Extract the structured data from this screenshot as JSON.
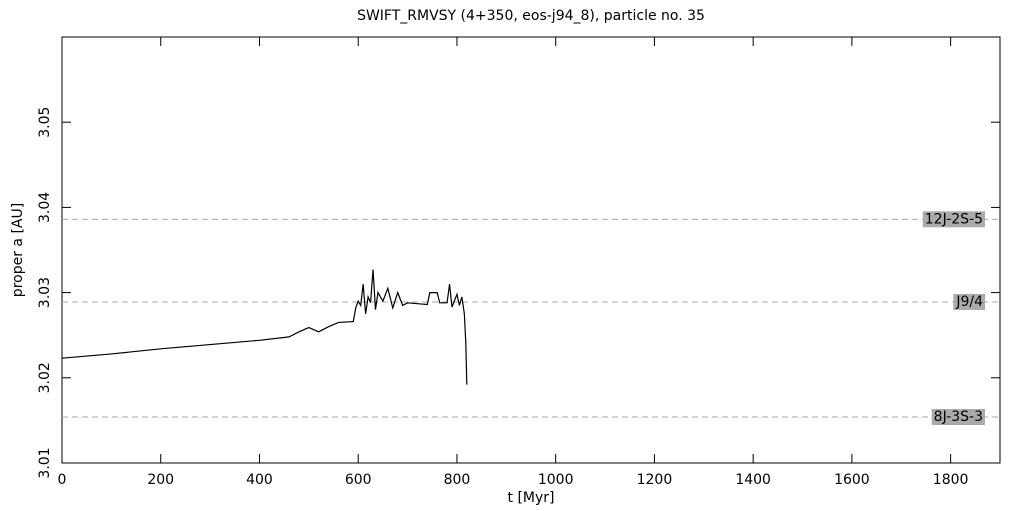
{
  "chart_data": {
    "type": "line",
    "title": "SWIFT_RMVSY (4+350, eos-j94_8), particle no. 35",
    "x_label": "t [Myr]",
    "y_label": "proper a [AU]",
    "xlim": [
      0,
      1900
    ],
    "ylim": [
      3.01,
      3.06
    ],
    "xticks": [
      0,
      200,
      400,
      600,
      800,
      1000,
      1200,
      1400,
      1600,
      1800
    ],
    "yticks": [
      3.01,
      3.02,
      3.03,
      3.04,
      3.05
    ],
    "reference_lines": [
      {
        "name": "12J-2S-5",
        "value": 3.0386,
        "color": "#aaaaaa"
      },
      {
        "name": "J9/4",
        "value": 3.0289,
        "color": "#aaaaaa"
      },
      {
        "name": "8J-3S-3",
        "value": 3.0154,
        "color": "#aaaaaa"
      }
    ],
    "series": [
      {
        "color": "#000000",
        "x": [
          0,
          100,
          200,
          300,
          400,
          460,
          480,
          500,
          520,
          540,
          560,
          590,
          595,
          600,
          605,
          610,
          615,
          620,
          625,
          630,
          635,
          640,
          650,
          660,
          670,
          680,
          690,
          700,
          720,
          740,
          745,
          760,
          765,
          780,
          785,
          790,
          800,
          805,
          810,
          815,
          818,
          820
        ],
        "values": [
          3.0223,
          3.0228,
          3.0234,
          3.0239,
          3.0244,
          3.0248,
          3.0254,
          3.0259,
          3.0254,
          3.026,
          3.0265,
          3.0266,
          3.0282,
          3.029,
          3.0285,
          3.031,
          3.0275,
          3.0295,
          3.0288,
          3.0327,
          3.028,
          3.03,
          3.029,
          3.0305,
          3.0282,
          3.03,
          3.0285,
          3.0288,
          3.0287,
          3.0286,
          3.03,
          3.03,
          3.0288,
          3.0288,
          3.031,
          3.0283,
          3.0298,
          3.0285,
          3.0295,
          3.0275,
          3.024,
          3.0192
        ]
      }
    ]
  }
}
